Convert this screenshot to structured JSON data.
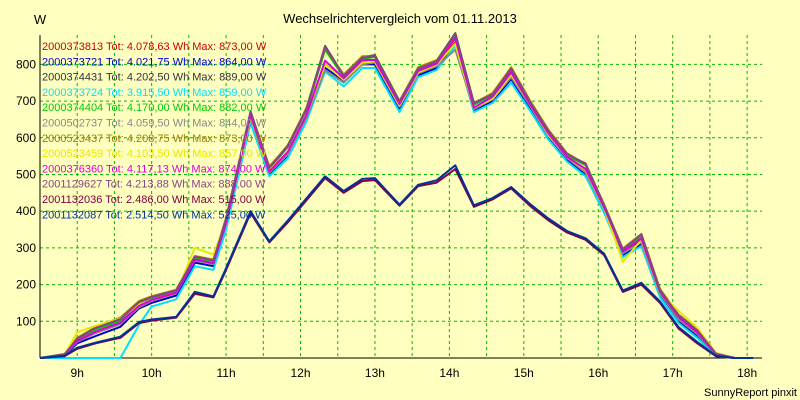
{
  "chart_data": {
    "type": "line",
    "title": "Wechselrichtervergleich vom 01.11.2013",
    "ylabel": "W",
    "footer": "SunnyReport pinxit",
    "ylim": [
      0,
      880
    ],
    "yticks": [
      100,
      200,
      300,
      400,
      500,
      600,
      700,
      800
    ],
    "xlim": [
      8.5,
      18.2
    ],
    "xticks": [
      "9h",
      "10h",
      "11h",
      "12h",
      "13h",
      "14h",
      "15h",
      "16h",
      "17h",
      "18h"
    ],
    "grid": true,
    "legend_position": "top-left",
    "x": [
      8.5,
      8.83,
      9.0,
      9.25,
      9.58,
      9.83,
      10.0,
      10.33,
      10.58,
      10.83,
      11.0,
      11.33,
      11.58,
      11.83,
      12.08,
      12.33,
      12.58,
      12.83,
      13.0,
      13.33,
      13.58,
      13.83,
      14.08,
      14.33,
      14.58,
      14.83,
      15.08,
      15.33,
      15.58,
      15.83,
      16.08,
      16.33,
      16.58,
      16.83,
      17.08,
      17.33,
      17.58,
      17.83,
      18.08
    ],
    "series": [
      {
        "name": "2000373813",
        "legend": "2000373813 Tot: 4.078,63 Wh Max: 873,00 W",
        "color": "#cc0000",
        "values": [
          0,
          8,
          45,
          70,
          95,
          140,
          160,
          180,
          270,
          260,
          370,
          660,
          510,
          560,
          660,
          800,
          760,
          810,
          810,
          690,
          780,
          800,
          860,
          680,
          710,
          770,
          690,
          610,
          550,
          510,
          410,
          290,
          320,
          180,
          110,
          70,
          10,
          0,
          0
        ]
      },
      {
        "name": "2000373721",
        "legend": "2000373721 Tot: 4.021,75 Wh Max: 864,00 W",
        "color": "#0000cc",
        "values": [
          0,
          5,
          40,
          60,
          85,
          135,
          150,
          170,
          260,
          250,
          360,
          650,
          500,
          550,
          650,
          790,
          755,
          800,
          800,
          680,
          770,
          790,
          855,
          675,
          700,
          760,
          680,
          600,
          540,
          500,
          400,
          280,
          310,
          170,
          100,
          60,
          8,
          0,
          0
        ]
      },
      {
        "name": "2000374431",
        "legend": "2000374431 Tot: 4.202,50 Wh Max: 889,00 W",
        "color": "#333333",
        "values": [
          0,
          10,
          50,
          80,
          105,
          150,
          165,
          185,
          275,
          265,
          380,
          670,
          520,
          580,
          680,
          850,
          770,
          820,
          825,
          700,
          790,
          810,
          885,
          695,
          720,
          790,
          700,
          620,
          555,
          530,
          415,
          295,
          335,
          185,
          115,
          75,
          12,
          0,
          0
        ]
      },
      {
        "name": "2000373724",
        "legend": "2000373724 Tot: 3.915,50 Wh Max: 859,00 W",
        "color": "#00e0ff",
        "values": [
          0,
          0,
          0,
          0,
          0,
          90,
          140,
          160,
          250,
          240,
          350,
          640,
          495,
          545,
          645,
          780,
          740,
          790,
          790,
          670,
          765,
          785,
          850,
          670,
          695,
          750,
          675,
          595,
          535,
          495,
          395,
          275,
          305,
          165,
          95,
          55,
          5,
          0,
          0
        ]
      },
      {
        "name": "2000374404",
        "legend": "2000374404 Tot: 4.170,00 Wh Max: 882,00 W",
        "color": "#00cc00",
        "values": [
          0,
          9,
          48,
          78,
          100,
          148,
          162,
          182,
          272,
          262,
          375,
          665,
          515,
          575,
          675,
          840,
          765,
          815,
          820,
          695,
          785,
          805,
          878,
          690,
          715,
          785,
          695,
          615,
          552,
          525,
          412,
          292,
          330,
          182,
          112,
          72,
          10,
          0,
          0
        ]
      },
      {
        "name": "2000502737",
        "legend": "2000502737 Tot: 4.059,50 Wh Max: 844,00 W",
        "color": "#888888",
        "values": [
          0,
          7,
          44,
          68,
          92,
          138,
          155,
          176,
          266,
          256,
          366,
          655,
          505,
          555,
          655,
          785,
          750,
          800,
          805,
          685,
          775,
          795,
          840,
          678,
          705,
          765,
          688,
          605,
          545,
          505,
          405,
          285,
          315,
          175,
          105,
          65,
          8,
          0,
          0
        ]
      },
      {
        "name": "2000523437",
        "legend": "2000523437 Tot: 4.208,75 Wh Max: 873,00 W",
        "color": "#a08000",
        "values": [
          0,
          11,
          55,
          85,
          110,
          155,
          168,
          186,
          278,
          268,
          382,
          668,
          522,
          578,
          682,
          845,
          772,
          822,
          822,
          698,
          792,
          812,
          870,
          694,
          722,
          792,
          702,
          622,
          558,
          528,
          418,
          298,
          338,
          188,
          118,
          78,
          12,
          0,
          0
        ]
      },
      {
        "name": "2000523459",
        "legend": "2000523459 Tot: 4.103,50 Wh Max: 857,00 W",
        "color": "#e8e800",
        "values": [
          0,
          9,
          70,
          88,
          108,
          146,
          158,
          178,
          300,
          282,
          372,
          656,
          512,
          562,
          662,
          800,
          758,
          805,
          808,
          688,
          778,
          800,
          856,
          682,
          706,
          772,
          692,
          608,
          548,
          512,
          408,
          262,
          322,
          178,
          128,
          82,
          14,
          0,
          0
        ]
      },
      {
        "name": "2000376360",
        "legend": "2000376360 Tot: 4.117,13 Wh Max: 874,00 W",
        "color": "#dd00dd",
        "values": [
          0,
          8,
          46,
          72,
          96,
          142,
          158,
          178,
          268,
          258,
          368,
          662,
          508,
          562,
          662,
          810,
          762,
          812,
          812,
          692,
          782,
          802,
          872,
          682,
          712,
          778,
          692,
          612,
          548,
          515,
          410,
          290,
          325,
          180,
          112,
          70,
          10,
          0,
          0
        ]
      },
      {
        "name": "2001129627",
        "legend": "2001129627 Tot: 4.213,88 Wh Max: 888,00 W",
        "color": "#884488",
        "values": [
          0,
          10,
          52,
          82,
          106,
          152,
          166,
          184,
          276,
          266,
          378,
          672,
          518,
          576,
          678,
          848,
          768,
          818,
          822,
          698,
          788,
          808,
          884,
          694,
          718,
          788,
          698,
          618,
          556,
          528,
          416,
          296,
          336,
          184,
          116,
          76,
          12,
          0,
          0
        ]
      },
      {
        "name": "2001132036",
        "legend": "2001132036 Tot: 2.486,00 Wh Max: 515,00 W",
        "color": "#800040",
        "values": [
          0,
          5,
          25,
          40,
          55,
          95,
          102,
          110,
          175,
          165,
          240,
          395,
          315,
          370,
          430,
          490,
          450,
          482,
          485,
          415,
          468,
          478,
          515,
          412,
          432,
          462,
          415,
          375,
          342,
          322,
          280,
          180,
          200,
          150,
          80,
          40,
          5,
          0,
          0
        ]
      },
      {
        "name": "2001132087",
        "legend": "2001132087 Tot: 2.514,50 Wh Max: 525,00 W",
        "color": "#003399",
        "values": [
          0,
          6,
          28,
          42,
          58,
          98,
          105,
          112,
          180,
          168,
          245,
          400,
          318,
          375,
          435,
          495,
          455,
          488,
          490,
          418,
          472,
          484,
          525,
          416,
          436,
          466,
          420,
          380,
          346,
          326,
          284,
          184,
          205,
          154,
          84,
          44,
          6,
          0,
          0
        ]
      }
    ]
  }
}
